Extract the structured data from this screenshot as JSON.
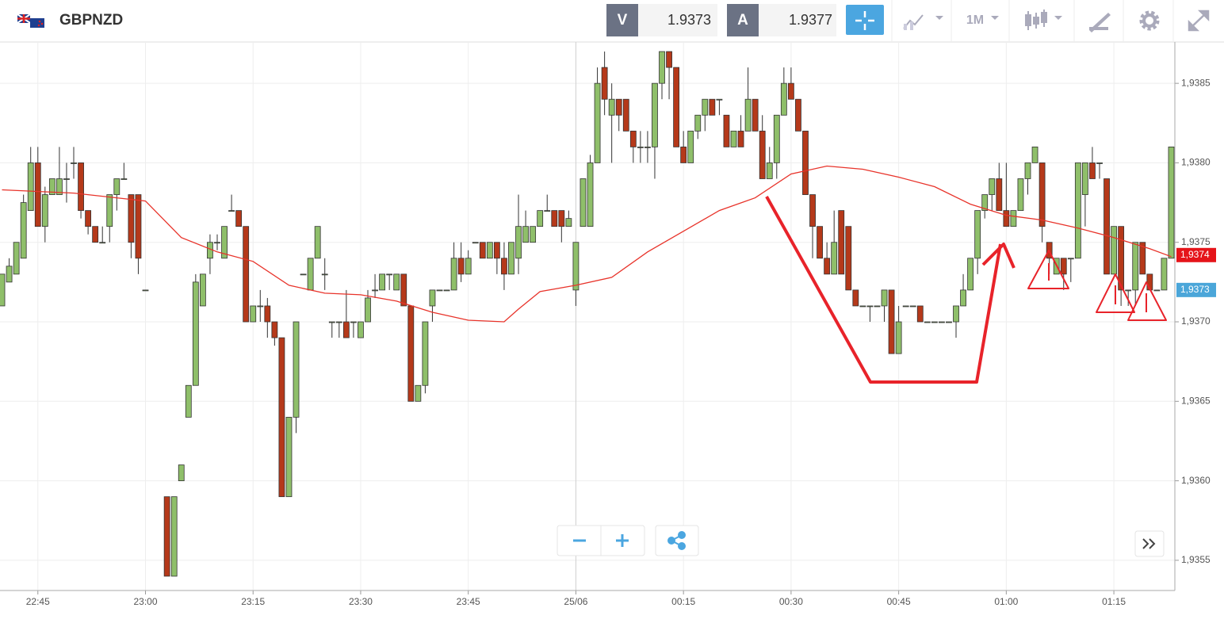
{
  "header": {
    "symbol": "GBPNZD",
    "bid_label": "V",
    "bid": "1.9373",
    "ask_label": "A",
    "ask": "1.9377",
    "timeframe": "1M"
  },
  "chart_data": {
    "type": "candlestick",
    "up_color": "#8fbf6a",
    "down_color": "#b5391a",
    "categories": [
      null,
      null,
      null,
      null,
      null,
      "22:45",
      null,
      null,
      null,
      null,
      null,
      null,
      null,
      null,
      null,
      null,
      null,
      null,
      null,
      null,
      "23:00",
      null,
      null,
      null,
      null,
      null,
      null,
      null,
      null,
      null,
      null,
      null,
      null,
      null,
      null,
      "23:15",
      null,
      null,
      null,
      null,
      null,
      null,
      null,
      null,
      null,
      null,
      null,
      null,
      null,
      null,
      "23:30",
      null,
      null,
      null,
      null,
      null,
      null,
      null,
      null,
      null,
      null,
      null,
      null,
      null,
      null,
      "23:45",
      null,
      null,
      null,
      null,
      null,
      null,
      null,
      null,
      null,
      null,
      null,
      null,
      null,
      null,
      "25/06",
      null,
      null,
      null,
      null,
      null,
      null,
      null,
      null,
      null,
      null,
      null,
      null,
      null,
      null,
      "00:15",
      null,
      null,
      null,
      null,
      null,
      null,
      null,
      null,
      null,
      null,
      null,
      null,
      null,
      null,
      "00:30",
      null,
      null,
      null,
      null,
      null,
      null,
      null,
      null,
      null,
      null,
      null,
      null,
      null,
      null,
      "00:45",
      null,
      null,
      null,
      null,
      null,
      null,
      null,
      null,
      null,
      null,
      null,
      null,
      null,
      null,
      "01:00",
      null,
      null,
      null,
      null,
      null,
      null,
      null,
      null,
      null,
      null,
      null,
      null,
      null,
      null,
      "01:15",
      null,
      null,
      null,
      null,
      null,
      null,
      null,
      null
    ],
    "open": [
      1.9371,
      1.93725,
      1.9373,
      1.9374,
      1.9377,
      1.938,
      1.9376,
      1.9378,
      1.9378,
      1.9379,
      1.938,
      1.938,
      1.9377,
      1.9376,
      1.9375,
      1.9376,
      1.9378,
      1.9379,
      1.9378,
      1.9378,
      1.9372,
      null,
      null,
      1.9359,
      1.9354,
      1.936,
      1.9364,
      1.9366,
      1.9371,
      1.9374,
      1.9375,
      1.9374,
      1.9377,
      1.9377,
      1.9376,
      1.937,
      1.9371,
      1.9371,
      1.937,
      1.9369,
      1.9359,
      1.9364,
      1.9373,
      1.9372,
      1.9374,
      1.9373,
      1.937,
      1.937,
      1.937,
      1.937,
      1.9369,
      1.937,
      1.9372,
      1.9372,
      1.9373,
      1.9372,
      1.9373,
      1.9371,
      1.9365,
      1.9366,
      1.9371,
      1.9372,
      1.9372,
      1.9372,
      1.9374,
      1.9373,
      1.9375,
      1.9375,
      1.9374,
      1.9375,
      1.9374,
      1.9373,
      1.9374,
      1.9375,
      1.9375,
      1.9376,
      1.9377,
      1.9377,
      1.9377,
      1.9376,
      1.9372,
      1.9376,
      1.9376,
      1.938,
      1.9386,
      1.9383,
      1.9384,
      1.9384,
      1.9382,
      1.9381,
      1.9381,
      1.9381,
      1.9385,
      1.9387,
      1.9386,
      1.9381,
      1.938,
      1.9382,
      1.9383,
      1.9384,
      1.9384,
      1.9383,
      1.9381,
      1.9382,
      1.9382,
      1.9384,
      1.9382,
      1.9379,
      1.938,
      1.9383,
      1.9385,
      1.9384,
      1.9382,
      1.9378,
      1.9376,
      1.9374,
      1.9373,
      1.9377,
      1.9376,
      1.9372,
      1.9371,
      1.9371,
      1.9371,
      1.9371,
      1.9372,
      1.9368,
      1.9371,
      1.9371,
      1.9371,
      1.937,
      1.937,
      1.937,
      1.937,
      1.937,
      1.9371,
      1.9372,
      1.9374,
      1.9377,
      1.9378,
      1.9379,
      1.9377,
      1.9376,
      1.9377,
      1.9379,
      1.938,
      1.938,
      1.9375,
      1.9373,
      1.9374,
      1.9374,
      1.9374,
      1.9378,
      1.938,
      1.938,
      1.9379,
      1.9373,
      1.9376,
      1.9372,
      1.9372,
      1.9375,
      1.9373,
      1.9372,
      1.9372,
      1.9374
    ],
    "high": [
      1.9373,
      1.9374,
      1.9375,
      1.9378,
      1.9381,
      1.9381,
      1.93785,
      1.9379,
      1.9381,
      1.938,
      1.9381,
      1.938,
      1.9377,
      1.9376,
      1.9376,
      1.9378,
      1.9379,
      1.938,
      1.9378,
      1.9378,
      1.9372,
      null,
      null,
      1.9359,
      1.9359,
      1.9361,
      1.9366,
      1.9373,
      1.9373,
      1.93755,
      1.93755,
      1.9376,
      1.9378,
      1.9377,
      1.9376,
      1.9371,
      1.9372,
      1.93715,
      1.937,
      1.9369,
      1.9364,
      1.937,
      1.9373,
      1.9374,
      1.9376,
      1.9374,
      1.937,
      1.937,
      1.9372,
      1.937,
      1.937,
      1.9372,
      1.9373,
      1.9373,
      1.9373,
      1.9373,
      1.9373,
      1.9371,
      1.9366,
      1.937,
      1.9372,
      1.9372,
      1.9372,
      1.9375,
      1.9375,
      1.93745,
      1.9375,
      1.9375,
      1.9375,
      1.9375,
      1.9375,
      1.9375,
      1.9378,
      1.9377,
      1.9376,
      1.9377,
      1.9378,
      1.9377,
      1.9377,
      1.9377,
      1.9375,
      1.9379,
      1.93805,
      1.9386,
      1.9387,
      1.9385,
      1.9384,
      1.9384,
      1.9382,
      1.9382,
      1.9382,
      1.9385,
      1.9387,
      1.9387,
      1.9386,
      1.9382,
      1.9382,
      1.9383,
      1.9384,
      1.9384,
      1.9384,
      1.9383,
      1.9382,
      1.9383,
      1.9386,
      1.9384,
      1.9383,
      1.9381,
      1.9383,
      1.9386,
      1.9386,
      1.9384,
      1.9382,
      1.9378,
      1.9376,
      1.9375,
      1.9377,
      1.9377,
      1.9376,
      1.9372,
      1.9371,
      1.9371,
      1.9371,
      1.9372,
      1.9372,
      1.9371,
      1.9371,
      1.9371,
      1.9371,
      1.937,
      1.937,
      1.937,
      1.937,
      1.9371,
      1.9373,
      1.9374,
      1.9377,
      1.9378,
      1.9379,
      1.938,
      1.938,
      1.9377,
      1.9379,
      1.938,
      1.9381,
      1.938,
      1.9375,
      1.9374,
      1.9374,
      1.9374,
      1.938,
      1.938,
      1.9381,
      1.938,
      1.9379,
      1.9376,
      1.9376,
      1.9372,
      1.9375,
      1.9375,
      1.9373,
      1.9372,
      1.9374,
      1.9381
    ],
    "low": [
      1.9371,
      1.93725,
      1.9373,
      1.9374,
      1.9377,
      1.9376,
      1.9375,
      1.9378,
      1.9378,
      1.93775,
      1.9379,
      1.93765,
      1.93755,
      1.9375,
      1.9375,
      1.9375,
      1.9377,
      1.9379,
      1.9374,
      1.9373,
      1.9372,
      null,
      null,
      1.9354,
      1.9354,
      1.936,
      1.9364,
      1.9366,
      1.9371,
      1.9373,
      1.93745,
      1.9374,
      1.9377,
      1.9376,
      1.937,
      1.937,
      1.937,
      1.9369,
      1.93685,
      1.9359,
      1.9359,
      1.9363,
      1.9373,
      1.9372,
      1.9374,
      1.9372,
      1.9369,
      1.9369,
      1.9369,
      1.9369,
      1.9369,
      1.937,
      1.93715,
      1.9372,
      1.9372,
      1.9372,
      1.9371,
      1.9365,
      1.9365,
      1.93655,
      1.937,
      1.9372,
      1.9372,
      1.9372,
      1.93725,
      1.9373,
      1.9375,
      1.9374,
      1.9374,
      1.9373,
      1.9372,
      1.9373,
      1.9373,
      1.9375,
      1.9375,
      1.9376,
      1.9377,
      1.9376,
      1.9375,
      1.9376,
      1.9371,
      1.9376,
      1.9376,
      1.938,
      1.9383,
      1.938,
      1.9382,
      1.9382,
      1.938,
      1.938,
      1.938,
      1.9379,
      1.9384,
      1.9384,
      1.9381,
      1.938,
      1.938,
      1.93815,
      1.9382,
      1.9383,
      1.9383,
      1.9381,
      1.9381,
      1.9381,
      1.9382,
      1.9382,
      1.9379,
      1.9379,
      1.9379,
      1.9383,
      1.9384,
      1.9382,
      1.9378,
      1.9374,
      1.9374,
      1.9373,
      1.9373,
      1.9373,
      1.9372,
      1.9371,
      1.9371,
      1.937,
      1.9371,
      1.937,
      1.9368,
      1.9368,
      1.9371,
      1.9371,
      1.937,
      1.937,
      1.937,
      1.937,
      1.937,
      1.9369,
      1.9371,
      1.9372,
      1.9373,
      1.93765,
      1.9377,
      1.9377,
      1.9376,
      1.9376,
      1.9377,
      1.9378,
      1.938,
      1.9375,
      1.9373,
      1.9373,
      1.9372,
      1.93725,
      1.9374,
      1.9376,
      1.9379,
      1.9379,
      1.9373,
      1.9373,
      1.9371,
      1.9371,
      1.9371,
      1.9373,
      1.9372,
      1.9372,
      1.9372,
      1.9374
    ],
    "close": [
      1.9373,
      1.93735,
      1.9375,
      1.93775,
      1.938,
      1.9376,
      1.9378,
      1.9379,
      1.9379,
      1.9379,
      1.938,
      1.9377,
      1.9376,
      1.9375,
      1.9375,
      1.9378,
      1.9379,
      1.9379,
      1.9375,
      1.9374,
      1.9372,
      null,
      null,
      1.9354,
      1.9359,
      1.9361,
      1.9366,
      1.93725,
      1.9373,
      1.9375,
      1.9375,
      1.9376,
      1.9377,
      1.9376,
      1.937,
      1.9371,
      1.9371,
      1.937,
      1.9369,
      1.9359,
      1.9364,
      1.937,
      1.9373,
      1.9374,
      1.9376,
      1.9373,
      1.937,
      1.937,
      1.9369,
      1.937,
      1.937,
      1.93715,
      1.9372,
      1.9373,
      1.9373,
      1.9373,
      1.9371,
      1.9365,
      1.9366,
      1.937,
      1.9372,
      1.9372,
      1.9372,
      1.9374,
      1.9373,
      1.9374,
      1.9375,
      1.9374,
      1.9375,
      1.9374,
      1.9373,
      1.9375,
      1.9376,
      1.9376,
      1.9376,
      1.9377,
      1.9377,
      1.9376,
      1.9376,
      1.93765,
      1.9375,
      1.9379,
      1.938,
      1.9385,
      1.9384,
      1.9384,
      1.9383,
      1.9382,
      1.9381,
      1.9381,
      1.9381,
      1.9385,
      1.9387,
      1.9386,
      1.9381,
      1.938,
      1.9382,
      1.9383,
      1.9384,
      1.9383,
      1.9384,
      1.9381,
      1.9382,
      1.9381,
      1.9384,
      1.9382,
      1.9379,
      1.938,
      1.9383,
      1.9385,
      1.9384,
      1.9382,
      1.9378,
      1.9376,
      1.9374,
      1.9373,
      1.9375,
      1.9373,
      1.9372,
      1.9371,
      1.9371,
      1.9371,
      1.9371,
      1.9372,
      1.9368,
      1.937,
      1.9371,
      1.9371,
      1.937,
      1.937,
      1.937,
      1.937,
      1.937,
      1.9371,
      1.9372,
      1.9374,
      1.9377,
      1.9378,
      1.9379,
      1.9377,
      1.9376,
      1.9377,
      1.9379,
      1.938,
      1.9381,
      1.9376,
      1.9374,
      1.9374,
      1.9373,
      1.9374,
      1.938,
      1.938,
      1.9379,
      1.938,
      1.9373,
      1.9376,
      1.9372,
      1.9372,
      1.9375,
      1.9373,
      1.9372,
      1.9372,
      1.9374,
      1.9381
    ],
    "ma": {
      "color": "#e8332a",
      "x": [
        0,
        10,
        20,
        25,
        30,
        35,
        40,
        45,
        50,
        55,
        60,
        65,
        70,
        72,
        75,
        80,
        85,
        90,
        95,
        100,
        105,
        110,
        115,
        120,
        125,
        130,
        135,
        140,
        145,
        150,
        155,
        160,
        163
      ],
      "values": [
        1.93783,
        1.93781,
        1.93776,
        1.93753,
        1.93744,
        1.93738,
        1.93723,
        1.93718,
        1.93717,
        1.93713,
        1.93706,
        1.93701,
        1.937,
        1.93708,
        1.93719,
        1.93723,
        1.93728,
        1.93744,
        1.93757,
        1.9377,
        1.93778,
        1.93793,
        1.93798,
        1.93796,
        1.93791,
        1.93785,
        1.93774,
        1.93767,
        1.93764,
        1.93759,
        1.93753,
        1.93746,
        1.93741
      ]
    },
    "ylim": [
      1.93531,
      1.93876
    ],
    "yticks": [
      {
        "value": 1.9355,
        "label": "1,9355"
      },
      {
        "value": 1.936,
        "label": "1,9360"
      },
      {
        "value": 1.9365,
        "label": "1,9365"
      },
      {
        "value": 1.937,
        "label": "1,9370"
      },
      {
        "value": 1.9375,
        "label": "1,9375"
      },
      {
        "value": 1.938,
        "label": "1,9380"
      },
      {
        "value": 1.9385,
        "label": "1,9385"
      }
    ],
    "grid": true,
    "price_tags": [
      {
        "value": 1.9374,
        "label": "1,9374",
        "color": "#e5141a"
      },
      {
        "value": 1.9373,
        "label": "1,9373",
        "color": "#4ba6d9"
      }
    ]
  }
}
